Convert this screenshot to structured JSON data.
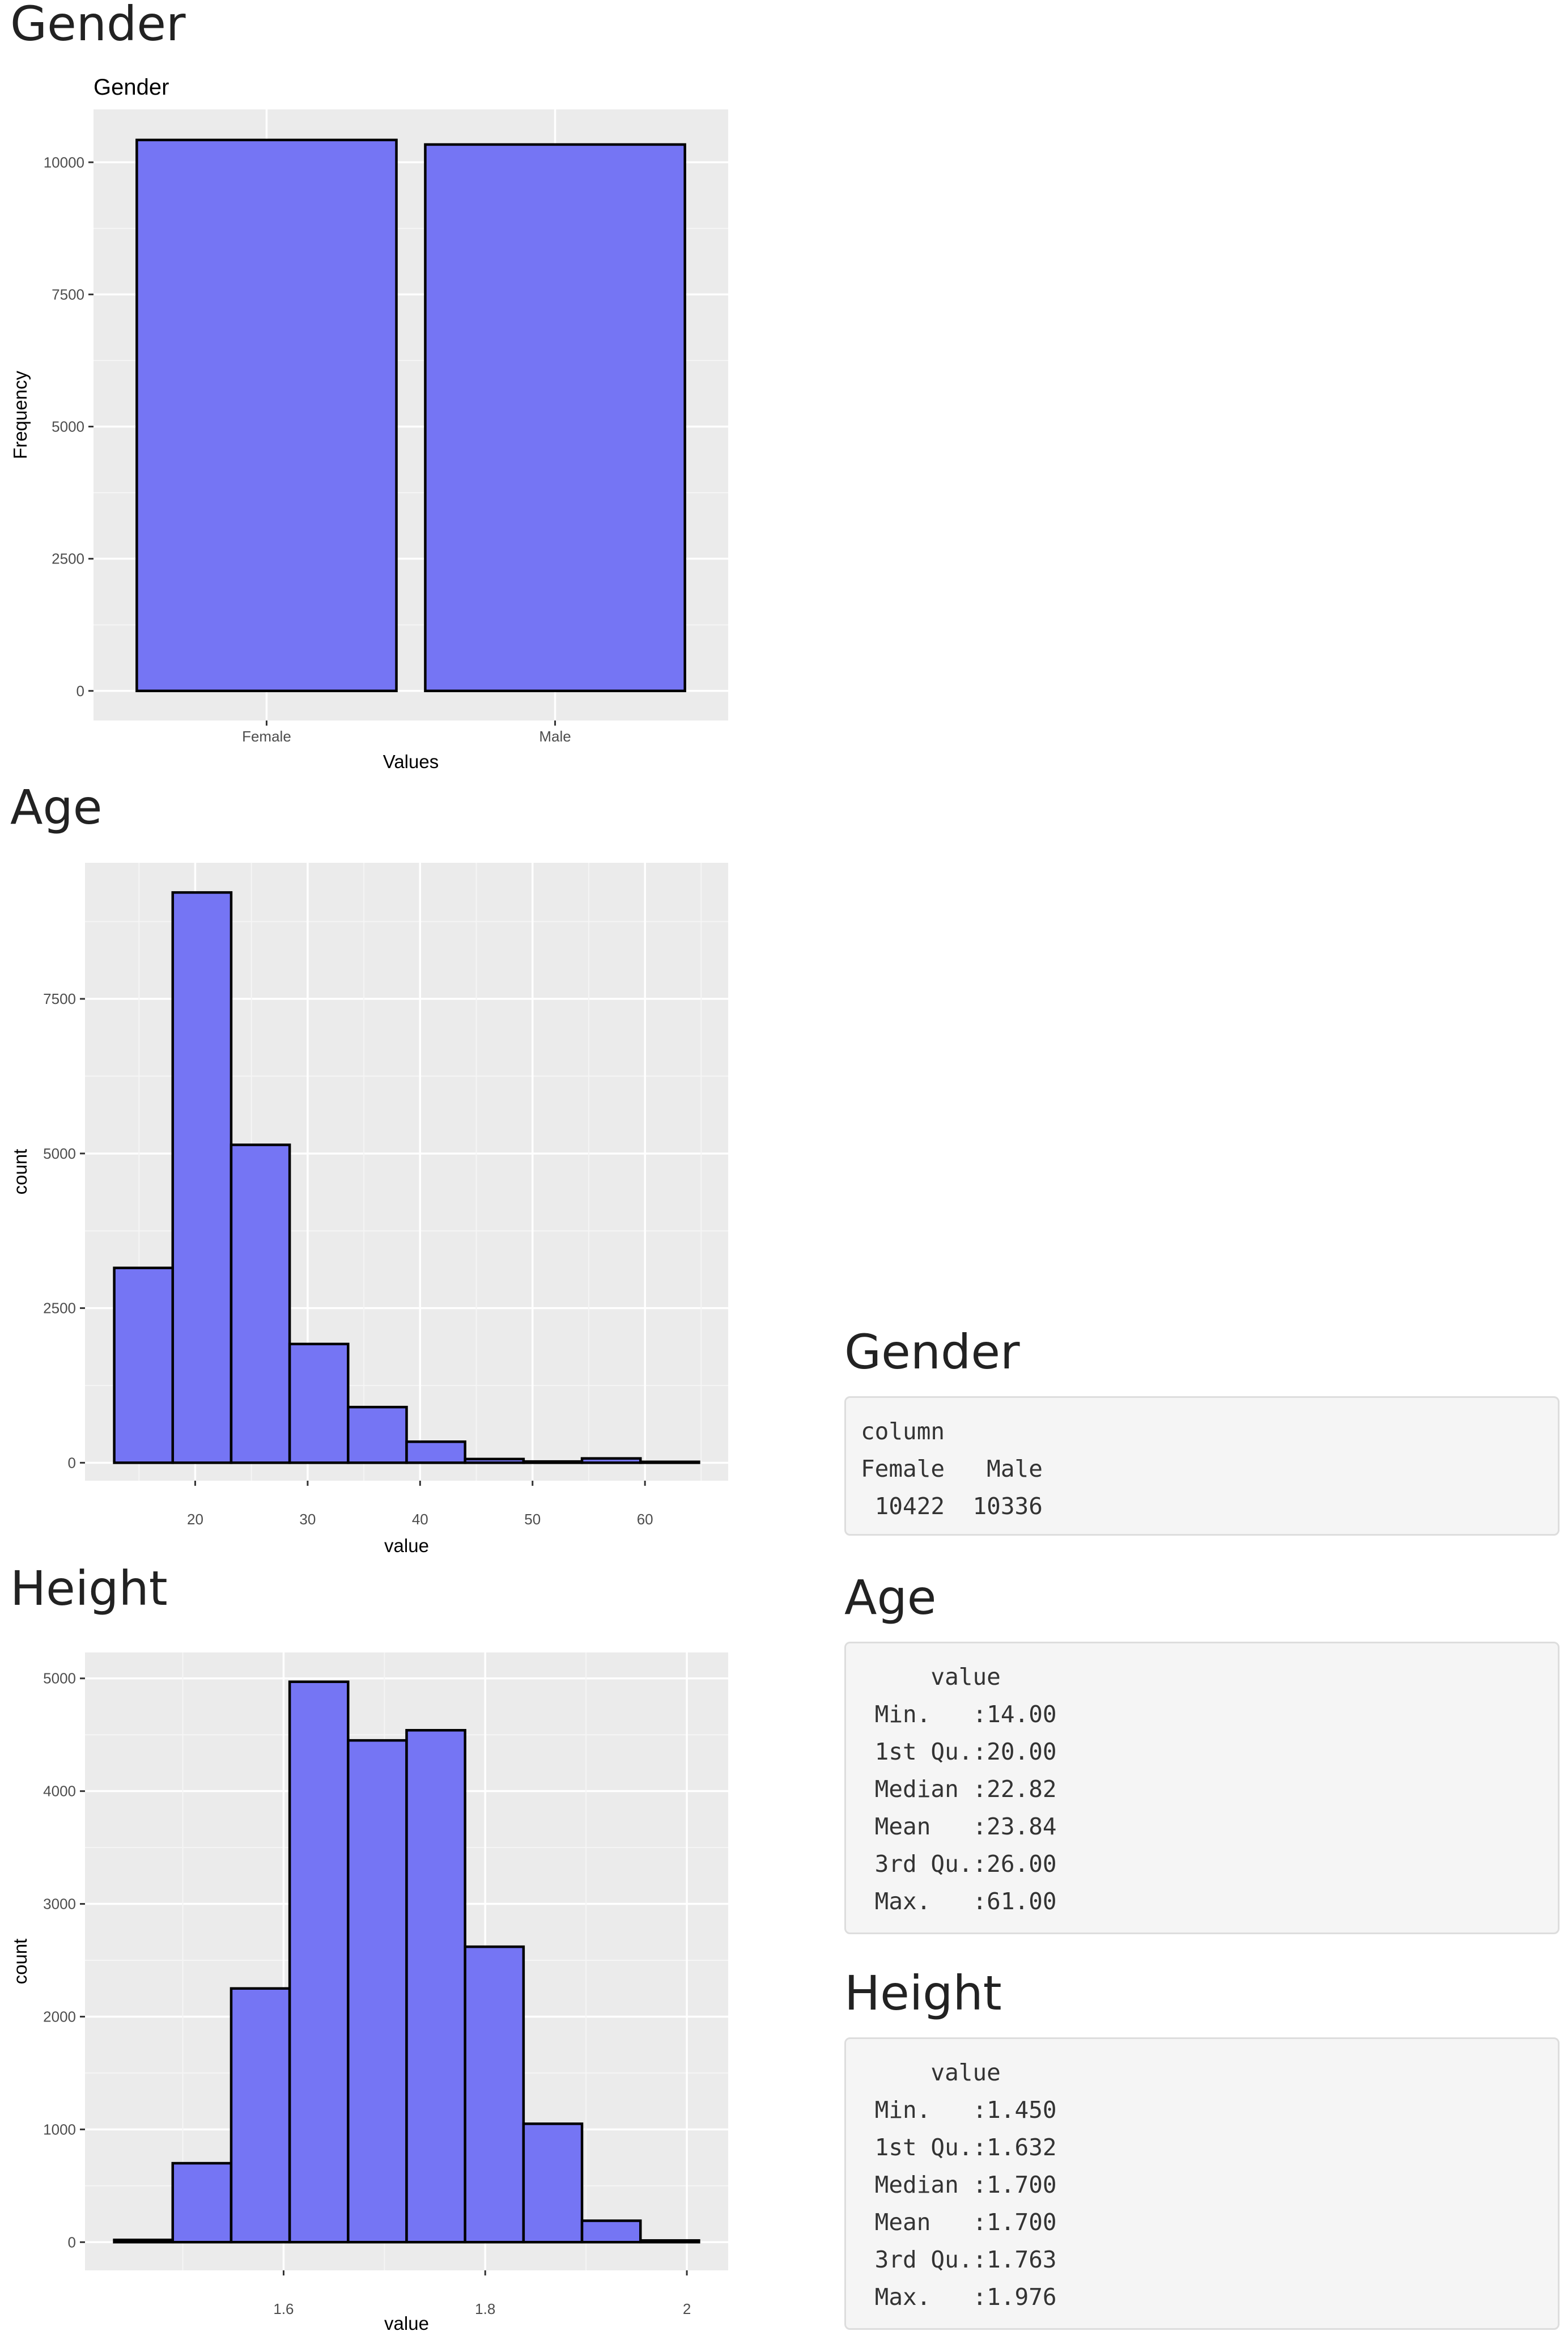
{
  "colors": {
    "bar_fill": "#7575f4",
    "bar_stroke": "#000000",
    "panel": "#ebebeb",
    "grid": "#ffffff"
  },
  "sections": {
    "gender_plot_heading": "Gender",
    "age_plot_heading": "Age",
    "height_plot_heading": "Height",
    "gender_summary_heading": "Gender",
    "age_summary_heading": "Age",
    "height_summary_heading": "Height"
  },
  "summaries": {
    "gender": "column\nFemale   Male\n 10422  10336",
    "age": "     value\n Min.   :14.00\n 1st Qu.:20.00\n Median :22.82\n Mean   :23.84\n 3rd Qu.:26.00\n Max.   :61.00",
    "height": "     value\n Min.   :1.450\n 1st Qu.:1.632\n Median :1.700\n Mean   :1.700\n 3rd Qu.:1.763\n Max.   :1.976"
  },
  "chart_data": [
    {
      "id": "gender",
      "type": "bar",
      "title": "Gender",
      "xlabel": "Values",
      "ylabel": "Frequency",
      "categories": [
        "Female",
        "Male"
      ],
      "values": [
        10422,
        10336
      ],
      "ylim": [
        -560,
        11000
      ],
      "yticks": [
        0,
        2500,
        5000,
        7500,
        10000
      ],
      "grid": true,
      "legend": "none"
    },
    {
      "id": "age",
      "type": "bar",
      "subtype": "histogram",
      "title": "",
      "xlabel": "value",
      "ylabel": "count",
      "bins": [
        {
          "x0": 12.8,
          "x1": 18.0,
          "count": 3150
        },
        {
          "x0": 18.0,
          "x1": 23.2,
          "count": 9220
        },
        {
          "x0": 23.2,
          "x1": 28.4,
          "count": 5140
        },
        {
          "x0": 28.4,
          "x1": 33.6,
          "count": 1920
        },
        {
          "x0": 33.6,
          "x1": 38.8,
          "count": 900
        },
        {
          "x0": 38.8,
          "x1": 44.0,
          "count": 340
        },
        {
          "x0": 44.0,
          "x1": 49.2,
          "count": 60
        },
        {
          "x0": 49.2,
          "x1": 54.4,
          "count": 20
        },
        {
          "x0": 54.4,
          "x1": 59.6,
          "count": 70
        },
        {
          "x0": 59.6,
          "x1": 64.8,
          "count": 15
        }
      ],
      "xlim": [
        10.2,
        67.4
      ],
      "ylim": [
        -290,
        9700
      ],
      "xticks": [
        20,
        30,
        40,
        50,
        60
      ],
      "yticks": [
        0,
        2500,
        5000,
        7500
      ],
      "grid": true,
      "legend": "none"
    },
    {
      "id": "height",
      "type": "bar",
      "subtype": "histogram",
      "title": "",
      "xlabel": "value",
      "ylabel": "count",
      "bins": [
        {
          "x0": 1.432,
          "x1": 1.49,
          "count": 20
        },
        {
          "x0": 1.49,
          "x1": 1.548,
          "count": 700
        },
        {
          "x0": 1.548,
          "x1": 1.606,
          "count": 2250
        },
        {
          "x0": 1.606,
          "x1": 1.664,
          "count": 4970
        },
        {
          "x0": 1.664,
          "x1": 1.722,
          "count": 4450
        },
        {
          "x0": 1.722,
          "x1": 1.78,
          "count": 4540
        },
        {
          "x0": 1.78,
          "x1": 1.838,
          "count": 2620
        },
        {
          "x0": 1.838,
          "x1": 1.896,
          "count": 1050
        },
        {
          "x0": 1.896,
          "x1": 1.954,
          "count": 190
        },
        {
          "x0": 1.954,
          "x1": 2.012,
          "count": 15
        }
      ],
      "xlim": [
        1.403,
        2.041
      ],
      "ylim": [
        -250,
        5230
      ],
      "xticks": [
        1.6,
        1.8,
        2.0
      ],
      "yticks": [
        0,
        1000,
        2000,
        3000,
        4000,
        5000
      ],
      "grid": true,
      "legend": "none"
    }
  ]
}
